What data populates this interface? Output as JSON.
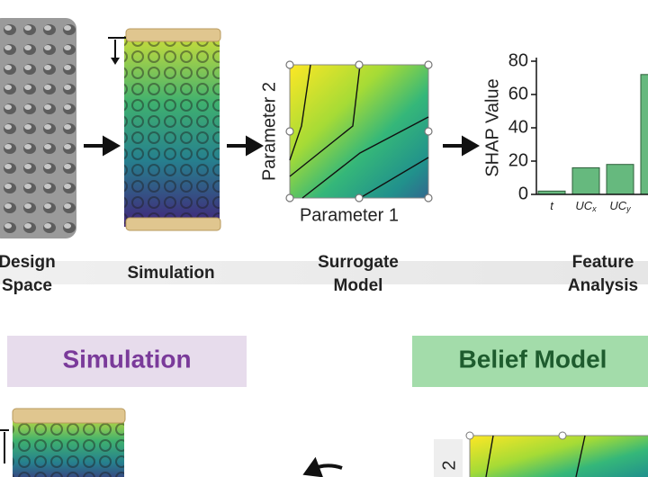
{
  "steps": [
    {
      "lines": [
        "Design",
        "Space"
      ]
    },
    {
      "lines": [
        "Simulation"
      ]
    },
    {
      "lines": [
        "Surrogate",
        "Model"
      ]
    },
    {
      "lines": [
        "Feature",
        "Analysis"
      ]
    }
  ],
  "surrogate": {
    "x_label": "Parameter 1",
    "y_label": "Parameter 2"
  },
  "chart_data": {
    "type": "bar",
    "y_label": "SHAP Value",
    "categories": [
      {
        "base": "t",
        "sub": null
      },
      {
        "base": "UC",
        "sub": "x"
      },
      {
        "base": "UC",
        "sub": "y"
      },
      null
    ],
    "values": [
      2,
      16,
      18,
      72
    ],
    "color": "#66b97e",
    "ylim": [
      0,
      80
    ],
    "yticks": [
      0,
      20,
      40,
      60,
      80
    ]
  },
  "panels": [
    {
      "title": "Simulation"
    },
    {
      "title": "Belief Model"
    }
  ],
  "bottom_surrogate": {
    "y_label": "2"
  }
}
